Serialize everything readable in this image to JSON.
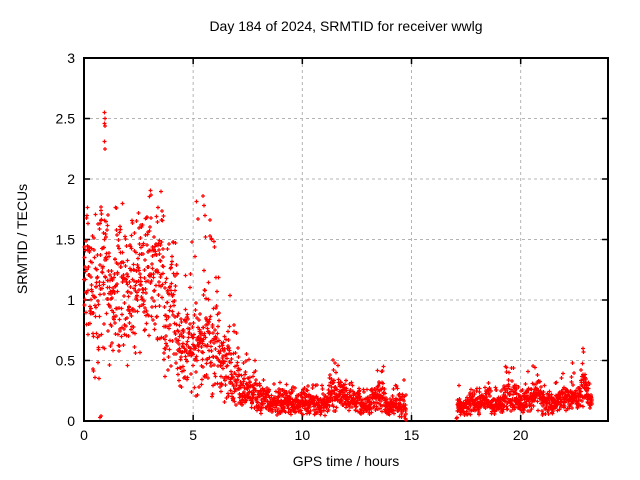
{
  "chart_data": {
    "type": "scatter",
    "title": "Day 184 of 2024, SRMTID for receiver wwlg",
    "xlabel": "GPS time / hours",
    "ylabel": "SRMTID / TECUs",
    "xlim": [
      0,
      24
    ],
    "ylim": [
      0,
      3
    ],
    "xticks": [
      0,
      5,
      10,
      15,
      20
    ],
    "yticks": [
      0,
      0.5,
      1,
      1.5,
      2,
      2.5,
      3
    ],
    "grid": "dashed-major",
    "legend": "none",
    "marker": "plus",
    "marker_size_px": 5,
    "marker_color": "#ff0000",
    "grid_color": "#b4b4b4",
    "axis_color": "#000000",
    "background_color": "#ffffff",
    "data_gap_hours": [
      14.78,
      17.03
    ],
    "sample_rate_per_hour": 120,
    "random_seed": 184,
    "envelope_bins": [
      {
        "t0": 0.0,
        "t1": 0.3,
        "lo": 0.55,
        "hi": 1.78,
        "center": 1.15
      },
      {
        "t0": 0.3,
        "t1": 0.7,
        "lo": 0.35,
        "hi": 1.75,
        "center": 1.0
      },
      {
        "t0": 0.7,
        "t1": 1.1,
        "lo": 0.6,
        "hi": 2.1,
        "center": 1.25
      },
      {
        "t0": 1.1,
        "t1": 1.5,
        "lo": 0.4,
        "hi": 1.9,
        "center": 1.0
      },
      {
        "t0": 1.5,
        "t1": 2.0,
        "lo": 0.35,
        "hi": 1.95,
        "center": 1.0
      },
      {
        "t0": 2.0,
        "t1": 2.6,
        "lo": 0.45,
        "hi": 1.8,
        "center": 1.1
      },
      {
        "t0": 2.6,
        "t1": 3.2,
        "lo": 0.55,
        "hi": 1.95,
        "center": 1.2
      },
      {
        "t0": 3.2,
        "t1": 3.7,
        "lo": 0.5,
        "hi": 1.9,
        "center": 1.15
      },
      {
        "t0": 3.7,
        "t1": 4.3,
        "lo": 0.35,
        "hi": 1.6,
        "center": 0.95
      },
      {
        "t0": 4.3,
        "t1": 4.9,
        "lo": 0.25,
        "hi": 1.4,
        "center": 0.6
      },
      {
        "t0": 4.9,
        "t1": 5.3,
        "lo": 0.2,
        "hi": 1.95,
        "center": 0.6
      },
      {
        "t0": 5.3,
        "t1": 5.8,
        "lo": 0.2,
        "hi": 1.87,
        "center": 0.7
      },
      {
        "t0": 5.8,
        "t1": 6.2,
        "lo": 0.2,
        "hi": 1.6,
        "center": 0.6
      },
      {
        "t0": 6.2,
        "t1": 6.7,
        "lo": 0.15,
        "hi": 1.1,
        "center": 0.45
      },
      {
        "t0": 6.7,
        "t1": 7.1,
        "lo": 0.12,
        "hi": 0.8,
        "center": 0.33
      },
      {
        "t0": 7.1,
        "t1": 7.6,
        "lo": 0.1,
        "hi": 0.62,
        "center": 0.25
      },
      {
        "t0": 7.6,
        "t1": 7.9,
        "lo": 0.08,
        "hi": 0.6,
        "center": 0.22
      },
      {
        "t0": 7.9,
        "t1": 8.5,
        "lo": 0.06,
        "hi": 0.4,
        "center": 0.18
      },
      {
        "t0": 8.5,
        "t1": 9.1,
        "lo": 0.05,
        "hi": 0.32,
        "center": 0.15
      },
      {
        "t0": 9.1,
        "t1": 9.6,
        "lo": 0.05,
        "hi": 0.35,
        "center": 0.16
      },
      {
        "t0": 9.6,
        "t1": 10.0,
        "lo": 0.04,
        "hi": 0.28,
        "center": 0.13
      },
      {
        "t0": 10.0,
        "t1": 10.5,
        "lo": 0.05,
        "hi": 0.36,
        "center": 0.16
      },
      {
        "t0": 10.5,
        "t1": 11.2,
        "lo": 0.04,
        "hi": 0.3,
        "center": 0.13
      },
      {
        "t0": 11.2,
        "t1": 12.0,
        "lo": 0.08,
        "hi": 0.55,
        "center": 0.21
      },
      {
        "t0": 12.0,
        "t1": 12.6,
        "lo": 0.05,
        "hi": 0.36,
        "center": 0.16
      },
      {
        "t0": 12.6,
        "t1": 13.1,
        "lo": 0.05,
        "hi": 0.3,
        "center": 0.13
      },
      {
        "t0": 13.1,
        "t1": 13.8,
        "lo": 0.07,
        "hi": 0.46,
        "center": 0.19
      },
      {
        "t0": 13.8,
        "t1": 14.4,
        "lo": 0.05,
        "hi": 0.3,
        "center": 0.13
      },
      {
        "t0": 14.4,
        "t1": 14.76,
        "lo": 0.03,
        "hi": 0.35,
        "center": 0.14
      },
      {
        "t0": 17.1,
        "t1": 17.6,
        "lo": 0.05,
        "hi": 0.3,
        "center": 0.12
      },
      {
        "t0": 17.6,
        "t1": 18.1,
        "lo": 0.05,
        "hi": 0.32,
        "center": 0.14
      },
      {
        "t0": 18.1,
        "t1": 18.6,
        "lo": 0.06,
        "hi": 0.38,
        "center": 0.17
      },
      {
        "t0": 18.6,
        "t1": 19.2,
        "lo": 0.05,
        "hi": 0.3,
        "center": 0.13
      },
      {
        "t0": 19.2,
        "t1": 19.8,
        "lo": 0.08,
        "hi": 0.47,
        "center": 0.19
      },
      {
        "t0": 19.8,
        "t1": 20.3,
        "lo": 0.05,
        "hi": 0.35,
        "center": 0.15
      },
      {
        "t0": 20.3,
        "t1": 21.0,
        "lo": 0.08,
        "hi": 0.5,
        "center": 0.2
      },
      {
        "t0": 21.0,
        "t1": 21.7,
        "lo": 0.05,
        "hi": 0.35,
        "center": 0.14
      },
      {
        "t0": 21.7,
        "t1": 22.4,
        "lo": 0.08,
        "hi": 0.52,
        "center": 0.19
      },
      {
        "t0": 22.4,
        "t1": 22.75,
        "lo": 0.1,
        "hi": 0.4,
        "center": 0.19
      },
      {
        "t0": 22.75,
        "t1": 23.05,
        "lo": 0.12,
        "hi": 0.62,
        "center": 0.28
      },
      {
        "t0": 23.05,
        "t1": 23.27,
        "lo": 0.1,
        "hi": 0.35,
        "center": 0.17
      }
    ],
    "feature_points": [
      [
        0.95,
        2.55
      ],
      [
        0.96,
        2.5
      ],
      [
        0.94,
        2.46
      ],
      [
        0.97,
        2.44
      ],
      [
        0.95,
        2.31
      ],
      [
        0.96,
        2.25
      ],
      [
        0.73,
        0.03
      ],
      [
        0.78,
        0.04
      ],
      [
        5.45,
        1.86
      ],
      [
        5.5,
        1.78
      ],
      [
        5.55,
        1.7
      ],
      [
        14.72,
        0.02
      ],
      [
        14.74,
        0.01
      ],
      [
        17.05,
        0.02
      ],
      [
        17.08,
        0.03
      ],
      [
        22.86,
        0.6
      ],
      [
        22.88,
        0.57
      ]
    ]
  },
  "layout_note": "single gnuplot-style scatter chart on white background"
}
